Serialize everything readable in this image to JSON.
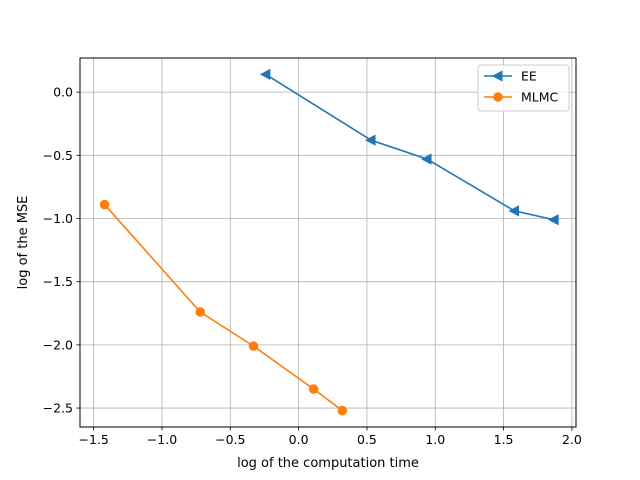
{
  "chart_data": {
    "type": "line",
    "title": "",
    "xlabel": "log of the computation time",
    "ylabel": "log of the MSE",
    "xlim": [
      -1.6,
      2.03
    ],
    "ylim": [
      -2.65,
      0.27
    ],
    "xticks": [
      -1.5,
      -1.0,
      -0.5,
      0.0,
      0.5,
      1.0,
      1.5,
      2.0
    ],
    "xtick_labels": [
      "−1.5",
      "−1.0",
      "−0.5",
      "0.0",
      "0.5",
      "1.0",
      "1.5",
      "2.0"
    ],
    "yticks": [
      0.0,
      -0.5,
      -1.0,
      -1.5,
      -2.0,
      -2.5
    ],
    "ytick_labels": [
      "0.0",
      "−0.5",
      "−1.0",
      "−1.5",
      "−2.0",
      "−2.5"
    ],
    "grid": true,
    "legend_position": "top-right",
    "series": [
      {
        "name": "EE",
        "color": "#1f77b4",
        "marker": "triangle-left",
        "x": [
          -0.24,
          0.53,
          0.94,
          1.58,
          1.87
        ],
        "y": [
          0.14,
          -0.38,
          -0.53,
          -0.94,
          -1.01
        ]
      },
      {
        "name": "MLMC",
        "color": "#ff7f0e",
        "marker": "circle",
        "x": [
          -1.42,
          -0.72,
          -0.33,
          0.11,
          0.32
        ],
        "y": [
          -0.89,
          -1.74,
          -2.01,
          -2.35,
          -2.52
        ]
      }
    ]
  }
}
